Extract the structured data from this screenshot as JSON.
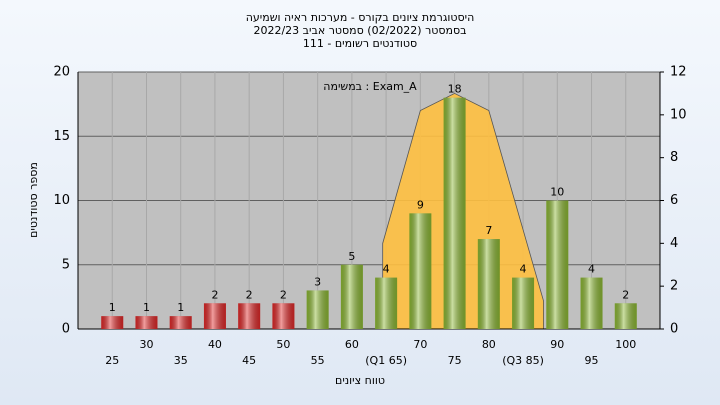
{
  "chart_data": {
    "type": "bar",
    "title": [
      "היסטוגרמת ציונים בקורס - מערכות ראיה ושמיעה",
      "בסמסטר  (02/2022)  סמסטר אביב 2022/23",
      "סטודנטים רשומים - 111"
    ],
    "annotation": "במשימה : Exam_A",
    "xlabel": "טווח ציונים",
    "ylabel": "מספר סטודנטים",
    "x": [
      25,
      30,
      35,
      40,
      45,
      50,
      55,
      60,
      65,
      70,
      75,
      80,
      85,
      90,
      95,
      100
    ],
    "values": [
      1,
      1,
      1,
      2,
      2,
      2,
      3,
      5,
      4,
      9,
      18,
      7,
      4,
      10,
      4,
      2
    ],
    "colors": [
      "#e02828",
      "#e02828",
      "#e02828",
      "#e02828",
      "#e02828",
      "#e02828",
      "#8cb833",
      "#8cb833",
      "#8cb833",
      "#8cb833",
      "#8cb833",
      "#8cb833",
      "#8cb833",
      "#8cb833",
      "#8cb833",
      "#8cb833"
    ],
    "xlim": [
      20,
      105
    ],
    "xticks": [
      25,
      30,
      35,
      40,
      45,
      50,
      55,
      60,
      {
        "value": 65,
        "label": "(Q1 65)"
      },
      70,
      75,
      80,
      {
        "value": 85,
        "label": "(Q3 85)"
      },
      90,
      95,
      100
    ],
    "ylim": [
      0,
      20
    ],
    "yticks": [
      0,
      5,
      10,
      15,
      20
    ],
    "y2lim": [
      0,
      12
    ],
    "y2ticks": [
      0,
      2,
      4,
      6,
      8,
      10,
      12
    ],
    "curve": {
      "axis": "y2",
      "color": "#ffc040",
      "x": [
        64.5,
        70,
        75,
        80,
        88
      ],
      "values": [
        4,
        10.2,
        11,
        10.2,
        1.3
      ]
    },
    "grid": true
  }
}
